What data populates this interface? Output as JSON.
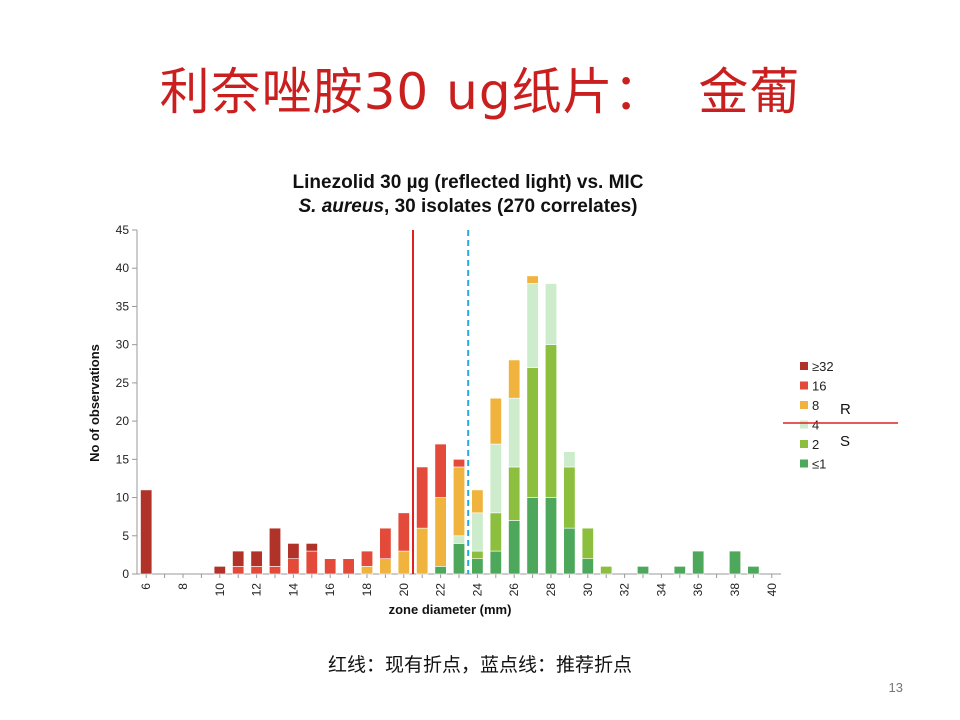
{
  "slide": {
    "title": "利奈唑胺30 ug纸片：  金葡",
    "caption": "红线：现有折点，蓝点线：推荐折点",
    "page_number": "13"
  },
  "chart_data": {
    "type": "bar",
    "stacked": true,
    "title_line1": "Linezolid 30 µg (reflected light) vs. MIC",
    "title_line2_italic": "S. aureus",
    "title_line2_rest": ", 30 isolates (270 correlates)",
    "xlabel": "zone diameter (mm)",
    "ylabel": "No of observations",
    "xlim": [
      5.5,
      40.5
    ],
    "ylim": [
      0,
      45
    ],
    "x_ticks": [
      6,
      8,
      10,
      12,
      14,
      16,
      18,
      20,
      22,
      24,
      26,
      28,
      30,
      32,
      34,
      36,
      38,
      40
    ],
    "y_ticks": [
      0,
      5,
      10,
      15,
      20,
      25,
      30,
      35,
      40,
      45
    ],
    "grid": false,
    "legend_position": "right",
    "x": [
      6,
      10,
      11,
      12,
      13,
      14,
      15,
      16,
      17,
      18,
      19,
      20,
      21,
      22,
      23,
      24,
      25,
      26,
      27,
      28,
      29,
      30,
      31,
      33,
      35,
      36,
      38,
      39
    ],
    "series": [
      {
        "name": "≤1",
        "color": "#4ea85c",
        "values": [
          0,
          0,
          0,
          0,
          0,
          0,
          0,
          0,
          0,
          0,
          0,
          0,
          0,
          1,
          4,
          2,
          3,
          7,
          10,
          10,
          6,
          2,
          0,
          1,
          1,
          3,
          3,
          1
        ]
      },
      {
        "name": "2",
        "color": "#8dbf3e",
        "values": [
          0,
          0,
          0,
          0,
          0,
          0,
          0,
          0,
          0,
          0,
          0,
          0,
          0,
          0,
          0,
          1,
          5,
          7,
          17,
          20,
          8,
          4,
          1,
          0,
          0,
          0,
          0,
          0
        ]
      },
      {
        "name": "4",
        "color": "#cdeccb",
        "values": [
          0,
          0,
          0,
          0,
          0,
          0,
          0,
          0,
          0,
          0,
          0,
          0,
          0,
          0,
          1,
          5,
          9,
          9,
          11,
          8,
          2,
          0,
          0,
          0,
          0,
          0,
          0,
          0
        ]
      },
      {
        "name": "8",
        "color": "#f0b43e",
        "values": [
          0,
          0,
          0,
          0,
          0,
          0,
          0,
          0,
          0,
          1,
          2,
          3,
          6,
          9,
          9,
          3,
          6,
          5,
          1,
          0,
          0,
          0,
          0,
          0,
          0,
          0,
          0,
          0
        ]
      },
      {
        "name": "16",
        "color": "#e34a3a",
        "values": [
          0,
          0,
          1,
          1,
          1,
          2,
          3,
          2,
          2,
          2,
          4,
          5,
          8,
          7,
          1,
          0,
          0,
          0,
          0,
          0,
          0,
          0,
          0,
          0,
          0,
          0,
          0,
          0
        ]
      },
      {
        "name": "≥32",
        "color": "#b03228",
        "values": [
          11,
          1,
          2,
          2,
          5,
          2,
          1,
          0,
          0,
          0,
          0,
          0,
          0,
          0,
          0,
          0,
          0,
          0,
          0,
          0,
          0,
          0,
          0,
          0,
          0,
          0,
          0,
          0
        ]
      }
    ],
    "reference_lines": [
      {
        "x": 20.5,
        "color": "#e02020",
        "style": "solid",
        "meaning": "现有折点"
      },
      {
        "x": 23.5,
        "color": "#2aa8e0",
        "style": "dashed",
        "meaning": "推荐折点"
      }
    ],
    "annotations": {
      "r_label": "R",
      "s_label": "S",
      "divider_color": "#e02020"
    }
  }
}
